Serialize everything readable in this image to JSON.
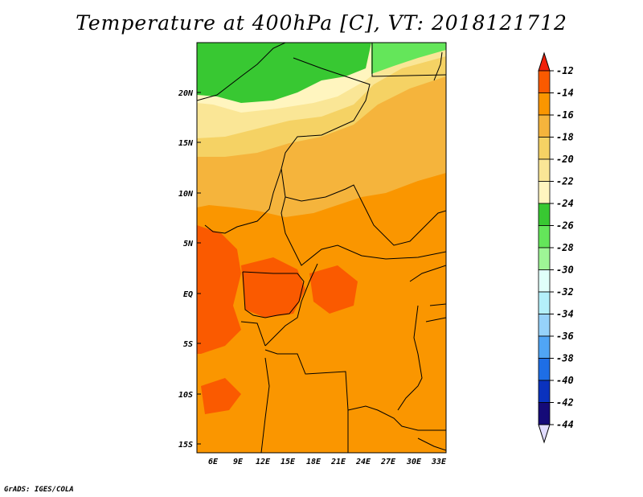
{
  "title": "Temperature at 400hPa [C], VT: 2018121712",
  "credit": "GrADS: IGES/COLA",
  "map": {
    "variable": "Temperature",
    "level": "400hPa",
    "units": "C",
    "valid_time": "2018121712",
    "lon_labels": [
      "6E",
      "9E",
      "12E",
      "15E",
      "18E",
      "21E",
      "24E",
      "27E",
      "30E",
      "33E"
    ],
    "lat_labels": [
      "20N",
      "15N",
      "10N",
      "5N",
      "EQ",
      "5S",
      "10S",
      "15S"
    ]
  },
  "legend": {
    "labels": [
      "-12",
      "-14",
      "-16",
      "-18",
      "-20",
      "-22",
      "-24",
      "-26",
      "-28",
      "-30",
      "-32",
      "-34",
      "-36",
      "-38",
      "-40",
      "-42",
      "-44"
    ],
    "colors": [
      "#f0200a",
      "#fa5a00",
      "#fa9600",
      "#f5b43c",
      "#f5d264",
      "#fae696",
      "#fff5bf",
      "#38c832",
      "#64e65a",
      "#9ef596",
      "#e0fffa",
      "#b4f0fa",
      "#96d2fa",
      "#50a5f5",
      "#1e6ee6",
      "#0a32be",
      "#150a78",
      "#e1dcff"
    ]
  }
}
